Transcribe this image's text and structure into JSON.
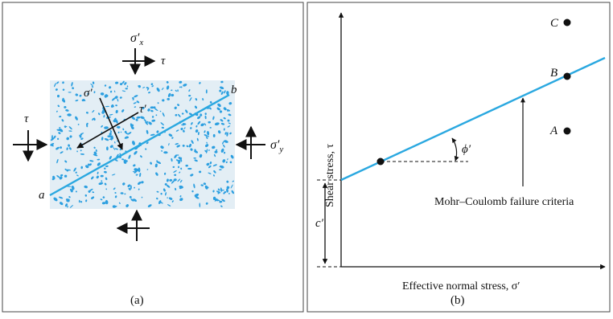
{
  "colors": {
    "line": "#2aa8e0",
    "particles": "#2c9fe0",
    "soil_bg": "#e3eef5",
    "ink": "#111111",
    "frame": "#444444"
  },
  "panel_a": {
    "caption": "(a)",
    "sigma_x_label": "σ′",
    "sigma_x_sub": "x",
    "sigma_y_label": "σ′",
    "sigma_y_sub": "y",
    "tau_top": "τ",
    "tau_left": "τ",
    "sigma_prime_label": "σ′",
    "tau_prime_label": "τ′",
    "point_a": "a",
    "point_b": "b"
  },
  "panel_b": {
    "caption": "(b)",
    "ylabel": "Shear stress, τ",
    "xlabel": "Effective normal stress, σ′",
    "point_A": "A",
    "point_B": "B",
    "point_C": "C",
    "phi_label": "ϕ′",
    "c_label": "c′",
    "criteria_label": "Mohr–Coulomb failure criteria"
  }
}
